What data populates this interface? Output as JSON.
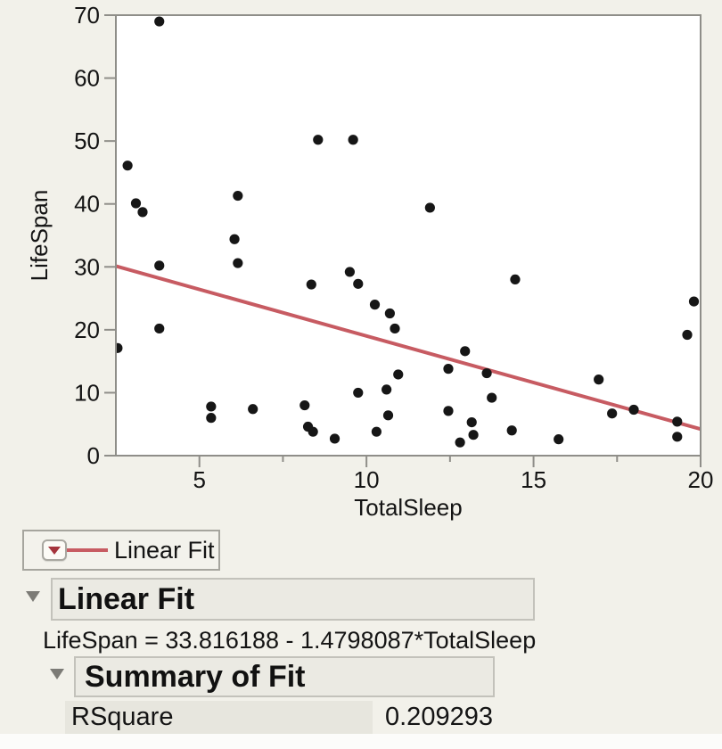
{
  "chart_data": {
    "type": "scatter",
    "xlabel": "TotalSleep",
    "ylabel": "LifeSpan",
    "xlim": [
      2.5,
      20
    ],
    "ylim": [
      0,
      70
    ],
    "x_major_ticks": [
      5,
      10,
      15,
      20
    ],
    "x_minor_ticks": [
      7.5,
      12.5,
      17.5
    ],
    "y_major_ticks": [
      0,
      10,
      20,
      30,
      40,
      50,
      60,
      70
    ],
    "points": [
      [
        3.8,
        69.0
      ],
      [
        8.55,
        50.2
      ],
      [
        9.6,
        50.2
      ],
      [
        2.85,
        46.1
      ],
      [
        3.1,
        40.1
      ],
      [
        3.3,
        38.7
      ],
      [
        6.15,
        41.3
      ],
      [
        6.05,
        34.4
      ],
      [
        11.9,
        39.4
      ],
      [
        3.8,
        30.2
      ],
      [
        6.15,
        30.6
      ],
      [
        9.5,
        29.2
      ],
      [
        8.35,
        27.2
      ],
      [
        9.75,
        27.3
      ],
      [
        3.8,
        20.2
      ],
      [
        2.55,
        17.1
      ],
      [
        5.35,
        7.8
      ],
      [
        5.35,
        6.0
      ],
      [
        6.6,
        7.4
      ],
      [
        8.15,
        8.0
      ],
      [
        8.25,
        4.6
      ],
      [
        8.4,
        3.8
      ],
      [
        9.05,
        2.7
      ],
      [
        9.75,
        10.0
      ],
      [
        14.45,
        28.0
      ],
      [
        10.25,
        24.0
      ],
      [
        10.7,
        22.6
      ],
      [
        10.85,
        20.2
      ],
      [
        12.95,
        16.6
      ],
      [
        12.45,
        13.8
      ],
      [
        13.6,
        13.1
      ],
      [
        10.95,
        12.9
      ],
      [
        10.6,
        10.5
      ],
      [
        13.75,
        9.2
      ],
      [
        10.65,
        6.4
      ],
      [
        12.45,
        7.1
      ],
      [
        13.15,
        5.3
      ],
      [
        13.2,
        3.3
      ],
      [
        12.8,
        2.1
      ],
      [
        14.35,
        4.0
      ],
      [
        15.75,
        2.6
      ],
      [
        16.95,
        12.1
      ],
      [
        17.35,
        6.7
      ],
      [
        18.0,
        7.3
      ],
      [
        19.3,
        5.4
      ],
      [
        19.3,
        3.0
      ],
      [
        19.8,
        24.5
      ],
      [
        19.6,
        19.2
      ],
      [
        10.3,
        3.8
      ]
    ],
    "fit": {
      "name": "Linear Fit",
      "intercept": 33.816188,
      "slope": -1.4798087
    },
    "legend_position": "below-left",
    "grid": false
  },
  "legend": {
    "label": "Linear Fit"
  },
  "sections": {
    "linear_fit": {
      "title": "Linear Fit",
      "equation": "LifeSpan = 33.816188 - 1.4798087*TotalSleep"
    },
    "summary_of_fit": {
      "title": "Summary of Fit",
      "rows": [
        {
          "label": "RSquare",
          "value": "0.209293"
        }
      ]
    }
  },
  "colors": {
    "page_bg": "#f2f1ea",
    "panel_bg": "#ffffff",
    "frame": "#8f8e89",
    "point": "#161616",
    "fit_line": "#c75b62",
    "text": "#141414",
    "popup_triangle": "#a5343c",
    "disclosure_triangle": "#7c7b76",
    "header_bar_bg": "#ebeae3",
    "table_cell_bg": "#e7e6de"
  }
}
